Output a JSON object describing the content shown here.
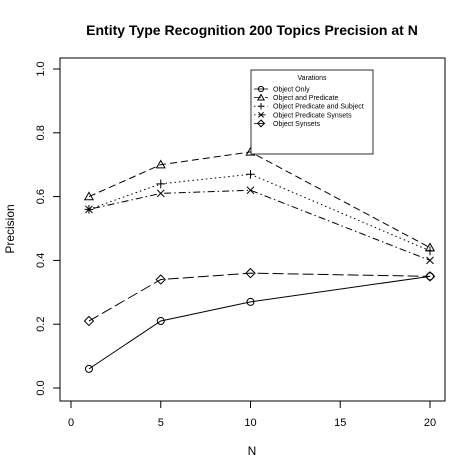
{
  "chart_data": {
    "type": "line",
    "title": "Entity Type Recognition 200 Topics Precision at N",
    "xlabel": "N",
    "ylabel": "Precision",
    "x": [
      1,
      5,
      10,
      20
    ],
    "xlim": [
      0,
      20
    ],
    "ylim": [
      0,
      1
    ],
    "xticks": [
      "0",
      "5",
      "10",
      "15",
      "20"
    ],
    "yticks": [
      "0.0",
      "0.2",
      "0.4",
      "0.6",
      "0.8",
      "1.0"
    ],
    "grid": false,
    "legend": {
      "title": "Varations",
      "placement": "top-right"
    },
    "series": [
      {
        "name": "Object Only",
        "marker": "circle",
        "dash": "solid",
        "values": [
          0.06,
          0.21,
          0.27,
          0.35
        ]
      },
      {
        "name": "Object and Predicate",
        "marker": "triangle",
        "dash": "dashed",
        "values": [
          0.6,
          0.7,
          0.74,
          0.44
        ]
      },
      {
        "name": "Object Predicate and Subject",
        "marker": "plus",
        "dash": "dotted",
        "values": [
          0.56,
          0.64,
          0.67,
          0.43
        ]
      },
      {
        "name": "Object Predicate Synsets",
        "marker": "cross",
        "dash": "dotdash",
        "values": [
          0.56,
          0.61,
          0.62,
          0.4
        ]
      },
      {
        "name": "Object Synsets",
        "marker": "diamond",
        "dash": "longdash",
        "values": [
          0.21,
          0.34,
          0.36,
          0.35
        ]
      }
    ]
  }
}
